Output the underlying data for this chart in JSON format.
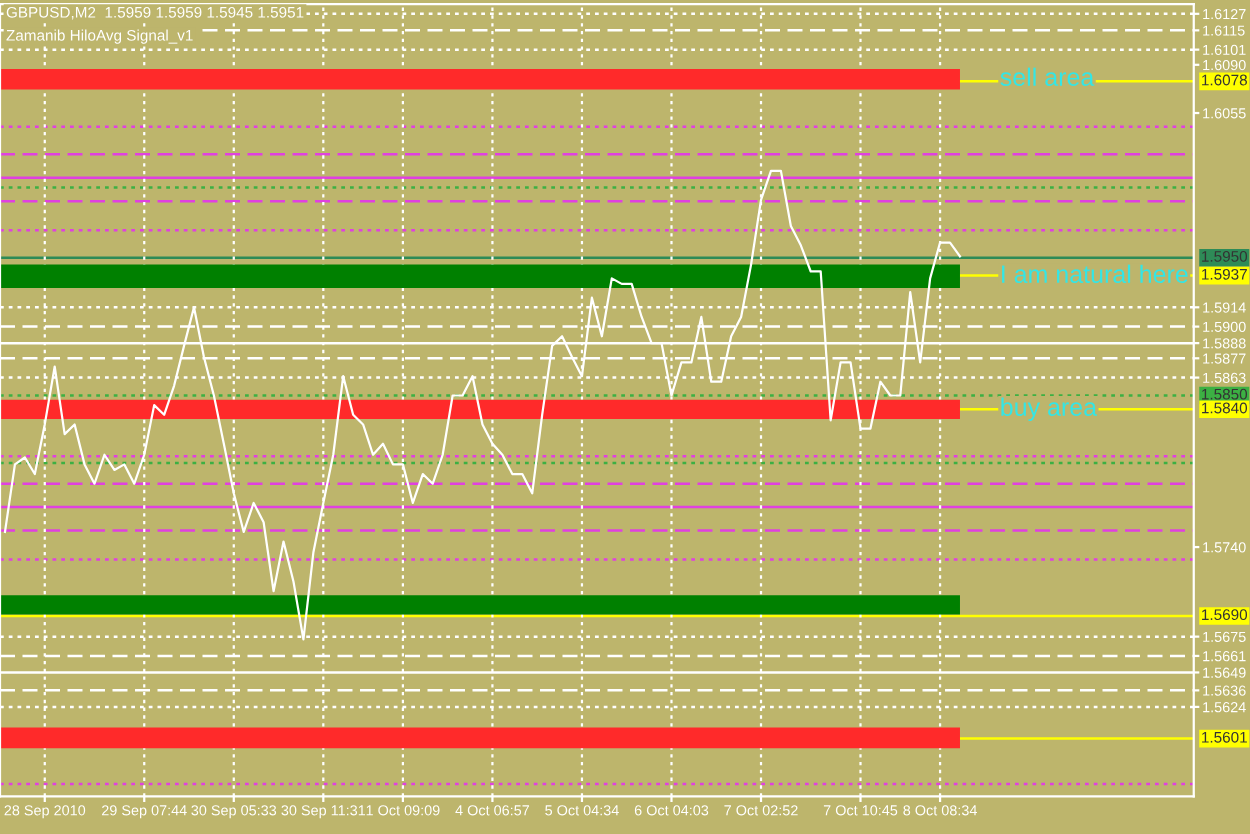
{
  "chart_data": {
    "type": "line",
    "title": "GBPUSD,M2  1.5959 1.5959 1.5945 1.5951",
    "subtitle": "Zamanib HiloAvg Signal_v1",
    "categories": [
      null,
      null,
      null,
      null,
      "28 Sep 2010",
      null,
      null,
      null,
      null,
      null,
      null,
      null,
      null,
      null,
      "29 Sep 07:44",
      null,
      null,
      null,
      null,
      null,
      null,
      null,
      null,
      "30 Sep 05:33",
      null,
      null,
      null,
      null,
      null,
      null,
      null,
      null,
      "30 Sep 11:31",
      null,
      null,
      null,
      null,
      null,
      null,
      null,
      "1 Oct 09:09",
      null,
      null,
      null,
      null,
      null,
      null,
      null,
      null,
      "4 Oct 06:57",
      null,
      null,
      null,
      null,
      null,
      null,
      null,
      null,
      "5 Oct 04:34",
      null,
      null,
      null,
      null,
      null,
      null,
      null,
      null,
      "6 Oct 04:03",
      null,
      null,
      null,
      null,
      null,
      null,
      null,
      null,
      "7 Oct 02:52",
      null,
      null,
      null,
      null,
      null,
      null,
      null,
      null,
      null,
      "7 Oct 10:45",
      null,
      null,
      null,
      null,
      null,
      null,
      null,
      "8 Oct 08:34",
      null,
      null,
      null,
      null,
      null,
      null,
      null,
      null,
      null,
      null,
      null,
      null,
      null,
      null,
      null,
      null,
      null,
      null,
      null,
      null,
      null,
      null,
      null,
      null,
      null
    ],
    "series": [
      {
        "color": "#ffffff",
        "values": [
          1.5751,
          1.58,
          1.5805,
          1.5793,
          1.5829,
          1.5871,
          1.5822,
          1.5829,
          1.58,
          1.5786,
          1.5807,
          1.5796,
          1.58,
          1.5786,
          1.5807,
          1.5843,
          1.5836,
          1.5857,
          1.5886,
          1.5914,
          1.5878,
          1.585,
          1.5815,
          1.5779,
          1.5751,
          1.5772,
          1.5758,
          1.5708,
          1.5744,
          1.5715,
          1.5673,
          1.5736,
          1.5772,
          1.5807,
          1.5864,
          1.5836,
          1.5829,
          1.5807,
          1.5815,
          1.58,
          1.58,
          1.5772,
          1.5793,
          1.5786,
          1.5807,
          1.585,
          1.585,
          1.5864,
          1.5829,
          1.5815,
          1.5807,
          1.5793,
          1.5793,
          1.5779,
          1.5836,
          1.5886,
          1.5893,
          1.5878,
          1.5864,
          1.5921,
          1.5893,
          1.5935,
          1.5931,
          1.5931,
          1.5907,
          1.5888,
          1.5888,
          1.585,
          1.5874,
          1.5874,
          1.5907,
          1.586,
          1.586,
          1.5893,
          1.5907,
          1.5945,
          1.5992,
          1.6013,
          1.6013,
          1.5973,
          1.5959,
          1.594,
          1.594,
          1.5832,
          1.5874,
          1.5874,
          1.5826,
          1.5826,
          1.586,
          1.585,
          1.585,
          1.5925,
          1.5874,
          1.5935,
          1.5961,
          1.5961,
          1.5951,
          null,
          null,
          null,
          null,
          null,
          null,
          null,
          null,
          null,
          null,
          null,
          null,
          null,
          null,
          null,
          null,
          null,
          null,
          null,
          null,
          null,
          null,
          null
        ]
      }
    ],
    "ylim": [
      1.5559,
      1.6134
    ],
    "yticks": [
      1.6127,
      1.6115,
      1.6101,
      {
        "value": 1.609,
        "label": "1.6090"
      },
      1.6055,
      1.5914,
      {
        "value": 1.59,
        "label": "1.5900"
      },
      1.5888,
      1.5877,
      1.5863,
      {
        "value": 1.574,
        "label": "1.5740"
      },
      1.5675,
      1.5661,
      1.5649,
      1.5636,
      1.5624
    ],
    "grid": "x",
    "bands": [
      {
        "axis": "y",
        "from": 1.6072,
        "to": 1.6087,
        "label": "sell area",
        "color": "#ff2a2a"
      },
      {
        "axis": "y",
        "from": 1.5928,
        "to": 1.5945,
        "label": "I am natural here",
        "color": "#008000"
      },
      {
        "axis": "y",
        "from": 1.5833,
        "to": 1.5847,
        "label": "buy area",
        "color": "#ff2a2a"
      },
      {
        "axis": "y",
        "from": 1.5691,
        "to": 1.5705,
        "color": "#008000"
      },
      {
        "axis": "y",
        "from": 1.5594,
        "to": 1.5609,
        "color": "#ff2a2a"
      }
    ],
    "ref_lines": [
      {
        "axis": "y",
        "value": 1.6127,
        "color": "#ffffff",
        "line_style": "dotted"
      },
      {
        "axis": "y",
        "value": 1.6115,
        "color": "#ffffff",
        "line_style": "dashed"
      },
      {
        "axis": "y",
        "value": 1.6101,
        "color": "#ffffff",
        "line_style": "dotted"
      },
      {
        "axis": "y",
        "value": 1.6078,
        "label": "1.6078",
        "color": "#ffff00",
        "line_style": "solid"
      },
      {
        "axis": "y",
        "value": 1.6045,
        "color": "#e040e0",
        "line_style": "dotted"
      },
      {
        "axis": "y",
        "value": 1.6025,
        "color": "#e040e0",
        "line_style": "dashed"
      },
      {
        "axis": "y",
        "value": 1.6008,
        "color": "#e040e0",
        "line_style": "solid"
      },
      {
        "axis": "y",
        "value": 1.6001,
        "color": "#3cb043",
        "line_style": "dotted"
      },
      {
        "axis": "y",
        "value": 1.5991,
        "color": "#e040e0",
        "line_style": "dashed"
      },
      {
        "axis": "y",
        "value": 1.597,
        "color": "#e040e0",
        "line_style": "dotted"
      },
      {
        "axis": "y",
        "value": 1.595,
        "label": "1.5950",
        "color": "#2e8b57",
        "line_style": "solid"
      },
      {
        "axis": "y",
        "value": 1.5937,
        "label": "1.5937",
        "color": "#ffff00",
        "line_style": "solid"
      },
      {
        "axis": "y",
        "value": 1.5914,
        "color": "#ffffff",
        "line_style": "dotted"
      },
      {
        "axis": "y",
        "value": 1.59,
        "color": "#ffffff",
        "line_style": "dashed"
      },
      {
        "axis": "y",
        "value": 1.5888,
        "color": "#ffffff",
        "line_style": "solid"
      },
      {
        "axis": "y",
        "value": 1.5877,
        "color": "#ffffff",
        "line_style": "dashed"
      },
      {
        "axis": "y",
        "value": 1.5863,
        "color": "#ffffff",
        "line_style": "dotted"
      },
      {
        "axis": "y",
        "value": 1.585,
        "label": "1.5850",
        "color": "#3cb043",
        "line_style": "dotted"
      },
      {
        "axis": "y",
        "value": 1.584,
        "label": "1.5840",
        "color": "#ffff00",
        "line_style": "solid"
      },
      {
        "axis": "y",
        "value": 1.5806,
        "color": "#e040e0",
        "line_style": "dotted"
      },
      {
        "axis": "y",
        "value": 1.5801,
        "color": "#3cb043",
        "line_style": "dotted"
      },
      {
        "axis": "y",
        "value": 1.5786,
        "color": "#e040e0",
        "line_style": "dashed"
      },
      {
        "axis": "y",
        "value": 1.5769,
        "color": "#e040e0",
        "line_style": "solid"
      },
      {
        "axis": "y",
        "value": 1.5752,
        "color": "#e040e0",
        "line_style": "dashed"
      },
      {
        "axis": "y",
        "value": 1.5731,
        "color": "#e040e0",
        "line_style": "dotted"
      },
      {
        "axis": "y",
        "value": 1.569,
        "label": "1.5690",
        "color": "#ffff00",
        "line_style": "solid"
      },
      {
        "axis": "y",
        "value": 1.5675,
        "color": "#ffffff",
        "line_style": "dotted"
      },
      {
        "axis": "y",
        "value": 1.5661,
        "color": "#ffffff",
        "line_style": "dashed"
      },
      {
        "axis": "y",
        "value": 1.5649,
        "color": "#ffffff",
        "line_style": "solid"
      },
      {
        "axis": "y",
        "value": 1.5636,
        "color": "#ffffff",
        "line_style": "dashed"
      },
      {
        "axis": "y",
        "value": 1.5624,
        "color": "#ffffff",
        "line_style": "dotted"
      },
      {
        "axis": "y",
        "value": 1.5601,
        "label": "1.5601",
        "color": "#ffff00",
        "line_style": "solid"
      },
      {
        "axis": "y",
        "value": 1.5568,
        "color": "#e040e0",
        "line_style": "dotted"
      }
    ]
  }
}
